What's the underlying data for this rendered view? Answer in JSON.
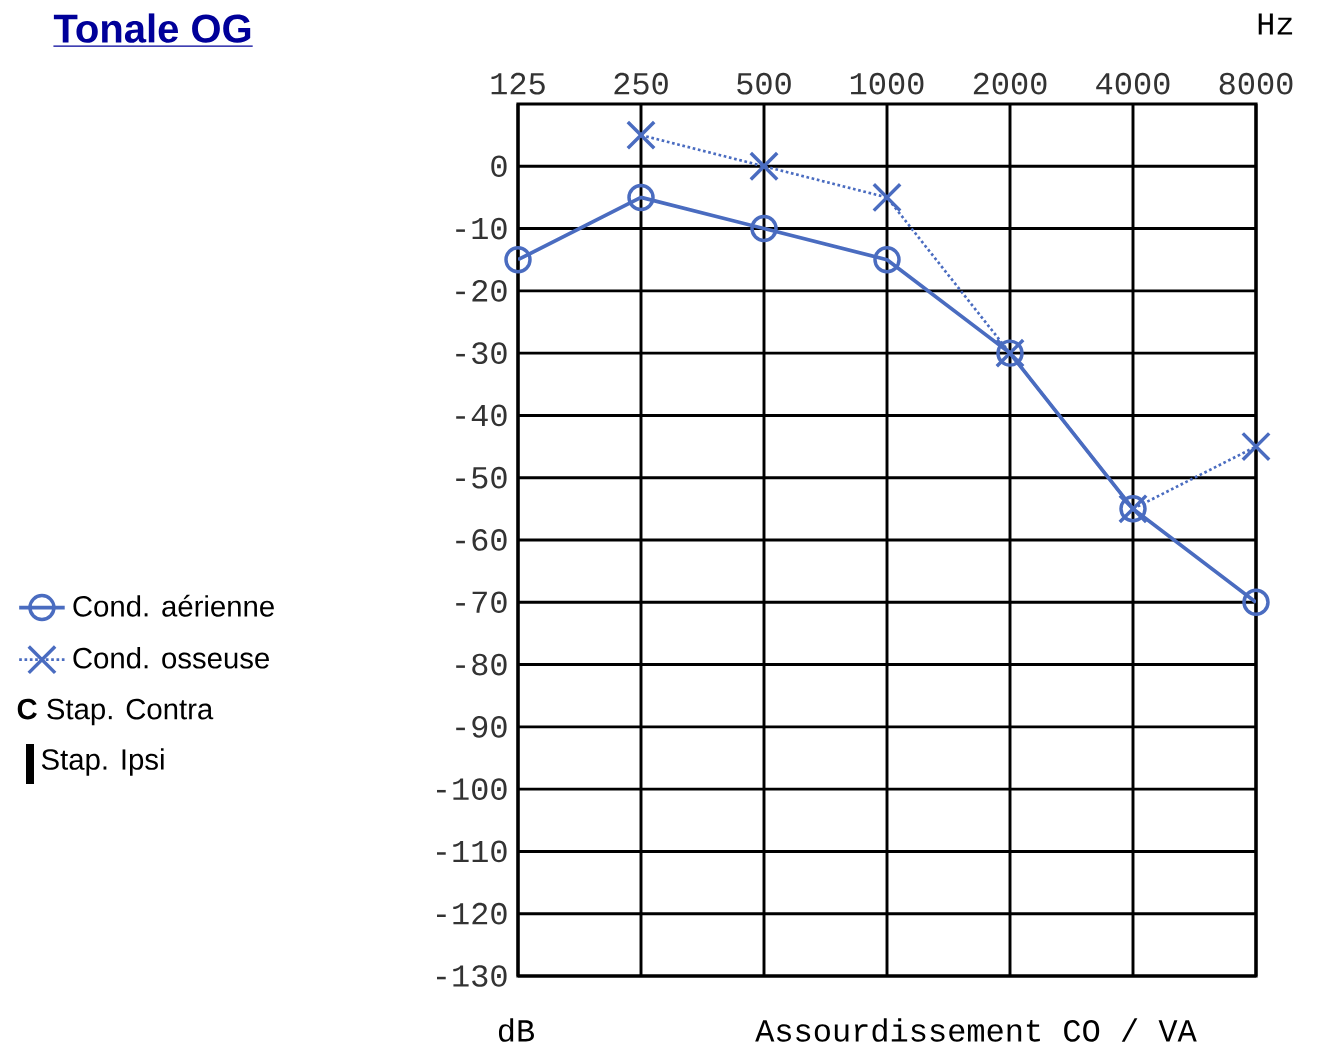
{
  "chart_data": {
    "type": "line",
    "title": "Tonale OG",
    "xlabel": "Hz",
    "ylabel": "dB",
    "categories": [
      "125",
      "250",
      "500",
      "1000",
      "2000",
      "4000",
      "8000"
    ],
    "series": [
      {
        "name": "Cond. aérienne",
        "color": "#4a6cc0",
        "marker": "circle",
        "line_style": "solid",
        "values": [
          -15,
          -5,
          -10,
          -15,
          -30,
          -55,
          -70
        ]
      },
      {
        "name": "Cond. osseuse",
        "color": "#4a6cc0",
        "marker": "cross",
        "line_style": "dotted",
        "values": [
          null,
          5,
          0,
          -5,
          -30,
          -55,
          -45
        ]
      }
    ],
    "ylim": [
      -130,
      10
    ],
    "yticks": [
      0,
      -10,
      -20,
      -30,
      -40,
      -50,
      -60,
      -70,
      -80,
      -90,
      -100,
      -110,
      -120,
      -130
    ],
    "grid": true,
    "legend": "left",
    "annotations": [
      "**C** Stap. Contra",
      "Stap. Ipsi",
      "Assourdissement CO / VA"
    ]
  }
}
